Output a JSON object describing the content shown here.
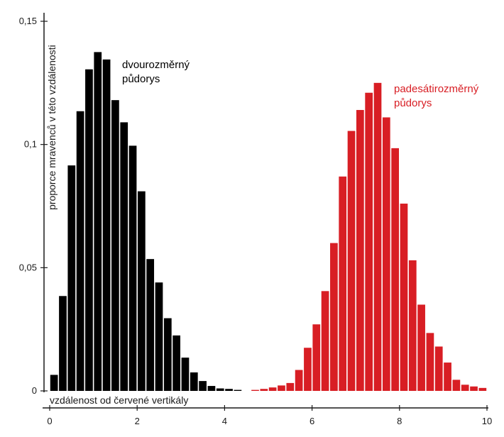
{
  "chart_data": {
    "type": "bar",
    "xlabel": "vzdálenost od červené vertikály",
    "ylabel": "proporce mravenců v této vzdálenosti",
    "xlim": [
      0,
      10
    ],
    "ylim": [
      0,
      0.15
    ],
    "bin_width": 0.2,
    "x_ticks": [
      "0",
      "2",
      "4",
      "6",
      "8",
      "10"
    ],
    "y_ticks": [
      "0",
      "0,05",
      "0,1",
      "0,15"
    ],
    "grid": false,
    "colors": {
      "series_1": "#000000",
      "series_2": "#d81e24",
      "axis": "#1a1a1a"
    },
    "annotations": [
      {
        "lines": [
          "dvourozměrný",
          "půdorys"
        ],
        "color": "#000000"
      },
      {
        "lines": [
          "padesátirozměrný",
          "půdorys"
        ],
        "color": "#d81e24"
      }
    ],
    "series": [
      {
        "color": "#000000",
        "bin_starts": [
          0,
          0.2,
          0.4,
          0.6,
          0.8,
          1.0,
          1.2,
          1.4,
          1.6,
          1.8,
          2.0,
          2.2,
          2.4,
          2.6,
          2.8,
          3.0,
          3.2,
          3.4,
          3.6,
          3.8,
          4.0,
          4.2
        ],
        "values": [
          0.0065,
          0.0385,
          0.0915,
          0.1135,
          0.1305,
          0.1375,
          0.1345,
          0.118,
          0.109,
          0.0995,
          0.081,
          0.0535,
          0.044,
          0.0295,
          0.0225,
          0.0135,
          0.0075,
          0.004,
          0.002,
          0.001,
          0.0008,
          0.0004
        ]
      },
      {
        "color": "#d81e24",
        "bin_starts": [
          4.6,
          4.8,
          5.0,
          5.2,
          5.4,
          5.6,
          5.8,
          6.0,
          6.2,
          6.4,
          6.6,
          6.8,
          7.0,
          7.2,
          7.4,
          7.6,
          7.8,
          8.0,
          8.2,
          8.4,
          8.6,
          8.8,
          9.0,
          9.2,
          9.4,
          9.6,
          9.8
        ],
        "values": [
          0.0004,
          0.0008,
          0.0014,
          0.0022,
          0.0032,
          0.0085,
          0.0175,
          0.027,
          0.0405,
          0.06,
          0.087,
          0.1055,
          0.114,
          0.121,
          0.125,
          0.111,
          0.0985,
          0.076,
          0.053,
          0.035,
          0.0235,
          0.018,
          0.0115,
          0.0045,
          0.0025,
          0.0018,
          0.0012
        ]
      }
    ]
  }
}
